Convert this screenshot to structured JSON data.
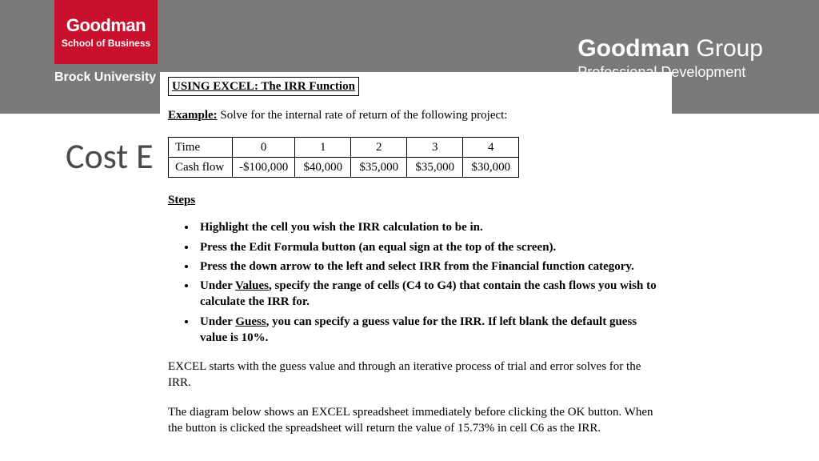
{
  "header": {
    "logo_main": "Goodman",
    "logo_sub": "School of Business",
    "brock": "Brock University",
    "group_bold": "Goodman",
    "group_light": " Group",
    "group_sub": "Professional Development"
  },
  "background_title": "Cost E",
  "doc": {
    "title": "USING EXCEL: The IRR Function",
    "example_label": "Example:",
    "example_text": " Solve for the internal rate of return of the following project:",
    "table": {
      "columns": [
        "Time",
        "0",
        "1",
        "2",
        "3",
        "4"
      ],
      "rows": [
        [
          "Cash flow",
          "-$100,000",
          "$40,000",
          "$35,000",
          "$35,000",
          "$30,000"
        ]
      ]
    },
    "steps_label": "Steps",
    "steps": [
      "Highlight the cell you wish the IRR calculation to be in.",
      "Press the Edit Formula button (an equal sign at the top of the screen).",
      "Press the down arrow to the left and select IRR from the Financial function category.",
      {
        "pre": "Under ",
        "u": "Values",
        "post": ", specify the range of cells (C4 to G4) that contain the cash flows you wish to calculate the IRR for."
      },
      {
        "pre": "Under ",
        "u": "Guess",
        "post": ",  you can specify a guess value for the IRR. If left blank the default guess value is 10%."
      }
    ],
    "para1": " EXCEL starts with the guess value and through an iterative process of trial and error solves for the IRR.",
    "para2": "The diagram below shows an EXCEL spreadsheet immediately before clicking the OK button. When the button is clicked the spreadsheet will return the value of 15.73% in cell C6 as the IRR."
  }
}
